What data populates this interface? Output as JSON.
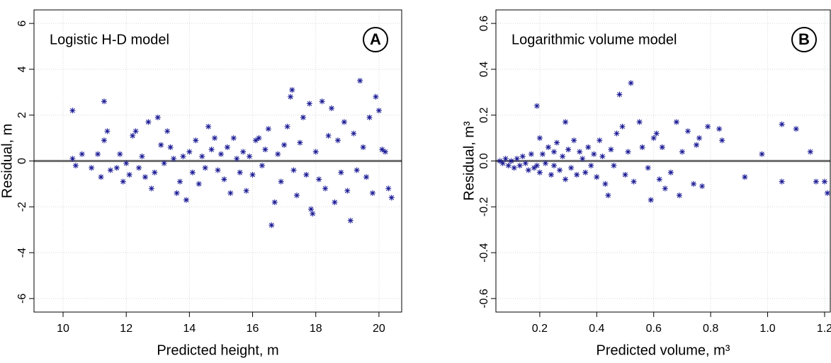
{
  "chart_data": [
    {
      "type": "scatter",
      "annotation": "Logistic H-D model",
      "panel_label": "A",
      "xlabel": "Predicted height, m",
      "ylabel": "Residual, m",
      "color": "#1c1c96",
      "grid": true,
      "hline": 0,
      "xlim": [
        9.08,
        20.72
      ],
      "ylim": [
        -6.59,
        6.59
      ],
      "xticks": [
        10,
        12,
        14,
        16,
        18,
        20
      ],
      "yticks": [
        -6,
        -4,
        -2,
        0,
        2,
        4,
        6
      ],
      "x": [
        10.3,
        10.3,
        10.4,
        10.6,
        10.9,
        11.1,
        11.2,
        11.3,
        11.3,
        11.4,
        11.5,
        11.7,
        11.8,
        11.9,
        12.0,
        12.1,
        12.2,
        12.3,
        12.4,
        12.5,
        12.6,
        12.7,
        12.8,
        12.9,
        13.0,
        13.1,
        13.2,
        13.3,
        13.4,
        13.5,
        13.6,
        13.7,
        13.8,
        13.9,
        14.0,
        14.1,
        14.2,
        14.3,
        14.4,
        14.5,
        14.6,
        14.7,
        14.8,
        14.9,
        15.0,
        15.1,
        15.2,
        15.3,
        15.4,
        15.5,
        15.6,
        15.7,
        15.8,
        15.9,
        16.0,
        16.1,
        16.2,
        16.3,
        16.4,
        16.5,
        16.6,
        16.7,
        16.8,
        16.9,
        17.0,
        17.1,
        17.2,
        17.25,
        17.3,
        17.4,
        17.5,
        17.6,
        17.7,
        17.8,
        17.85,
        17.9,
        18.0,
        18.1,
        18.2,
        18.3,
        18.4,
        18.5,
        18.6,
        18.7,
        18.8,
        18.9,
        19.0,
        19.1,
        19.2,
        19.3,
        19.4,
        19.5,
        19.6,
        19.7,
        19.8,
        19.9,
        20.0,
        20.1,
        20.2,
        20.3,
        20.4
      ],
      "values": [
        2.2,
        0.1,
        -0.2,
        0.3,
        -0.3,
        0.3,
        -0.7,
        2.6,
        0.9,
        1.3,
        -0.4,
        -0.3,
        0.3,
        -0.9,
        -0.1,
        -0.6,
        1.1,
        1.3,
        -0.3,
        0.2,
        -0.7,
        1.7,
        -1.2,
        -0.5,
        1.9,
        0.7,
        -0.1,
        1.3,
        0.6,
        0.1,
        -1.4,
        -0.9,
        0.2,
        -1.7,
        0.4,
        -0.5,
        0.9,
        -1.0,
        0.2,
        -0.3,
        1.5,
        0.5,
        1.0,
        -0.4,
        0.3,
        -0.8,
        0.6,
        -1.4,
        1.0,
        0.1,
        -0.5,
        0.4,
        -1.3,
        0.2,
        -0.6,
        0.9,
        1.0,
        -0.2,
        0.5,
        1.4,
        -2.8,
        -1.8,
        0.3,
        -0.9,
        0.7,
        1.5,
        2.8,
        3.1,
        -0.4,
        -1.5,
        0.8,
        1.9,
        -0.6,
        2.5,
        -2.1,
        -2.3,
        0.4,
        -0.8,
        2.6,
        -1.2,
        1.1,
        2.3,
        -1.8,
        0.9,
        -0.5,
        1.7,
        -1.3,
        -2.6,
        1.2,
        -0.4,
        3.5,
        0.6,
        -0.7,
        1.9,
        -1.4,
        2.8,
        2.2,
        0.5,
        0.4,
        -1.2,
        -1.6
      ]
    },
    {
      "type": "scatter",
      "annotation": "Logarithmic volume model",
      "panel_label": "B",
      "xlabel": "Predicted volume, m³",
      "ylabel": "Residual, m³",
      "color": "#1c1c96",
      "grid": true,
      "hline": 0,
      "xlim": [
        0.046,
        1.22
      ],
      "ylim": [
        -0.659,
        0.659
      ],
      "xticks": [
        0.2,
        0.4,
        0.6,
        0.8,
        {
          "value": 1,
          "label": "1.0"
        },
        1.2
      ],
      "yticks": [
        -0.6,
        -0.4,
        -0.2,
        {
          "value": 0,
          "label": "0.0"
        },
        0.2,
        0.4,
        0.6
      ],
      "x": [
        0.06,
        0.07,
        0.08,
        0.09,
        0.1,
        0.11,
        0.12,
        0.13,
        0.14,
        0.15,
        0.16,
        0.17,
        0.18,
        0.19,
        0.19,
        0.2,
        0.2,
        0.21,
        0.22,
        0.23,
        0.24,
        0.25,
        0.25,
        0.26,
        0.27,
        0.28,
        0.29,
        0.29,
        0.3,
        0.31,
        0.32,
        0.33,
        0.34,
        0.35,
        0.36,
        0.37,
        0.38,
        0.39,
        0.4,
        0.41,
        0.42,
        0.43,
        0.44,
        0.45,
        0.46,
        0.47,
        0.48,
        0.49,
        0.5,
        0.51,
        0.52,
        0.53,
        0.55,
        0.56,
        0.58,
        0.59,
        0.6,
        0.61,
        0.62,
        0.63,
        0.64,
        0.66,
        0.68,
        0.69,
        0.7,
        0.72,
        0.74,
        0.75,
        0.76,
        0.77,
        0.79,
        0.83,
        0.84,
        0.92,
        0.98,
        1.05,
        1.05,
        1.1,
        1.15,
        1.17,
        1.2,
        1.21
      ],
      "values": [
        0.0,
        -0.01,
        0.01,
        -0.02,
        0.0,
        -0.03,
        0.01,
        -0.02,
        0.02,
        -0.01,
        -0.04,
        0.03,
        -0.03,
        0.24,
        -0.02,
        0.1,
        -0.05,
        0.03,
        -0.01,
        0.06,
        -0.06,
        0.04,
        -0.02,
        0.08,
        -0.04,
        0.02,
        0.17,
        -0.08,
        0.05,
        -0.03,
        0.09,
        -0.06,
        0.04,
        0.01,
        -0.05,
        0.06,
        -0.02,
        0.03,
        -0.07,
        0.09,
        0.02,
        -0.1,
        -0.15,
        0.05,
        -0.02,
        0.12,
        0.29,
        0.15,
        -0.06,
        0.04,
        0.34,
        -0.09,
        0.17,
        0.06,
        -0.03,
        -0.17,
        0.1,
        0.12,
        -0.08,
        0.06,
        -0.12,
        -0.05,
        0.17,
        -0.15,
        0.04,
        0.13,
        -0.1,
        0.07,
        0.1,
        -0.11,
        0.15,
        0.14,
        0.09,
        -0.07,
        0.03,
        0.16,
        -0.09,
        0.14,
        0.04,
        -0.09,
        -0.09,
        -0.14
      ]
    }
  ]
}
